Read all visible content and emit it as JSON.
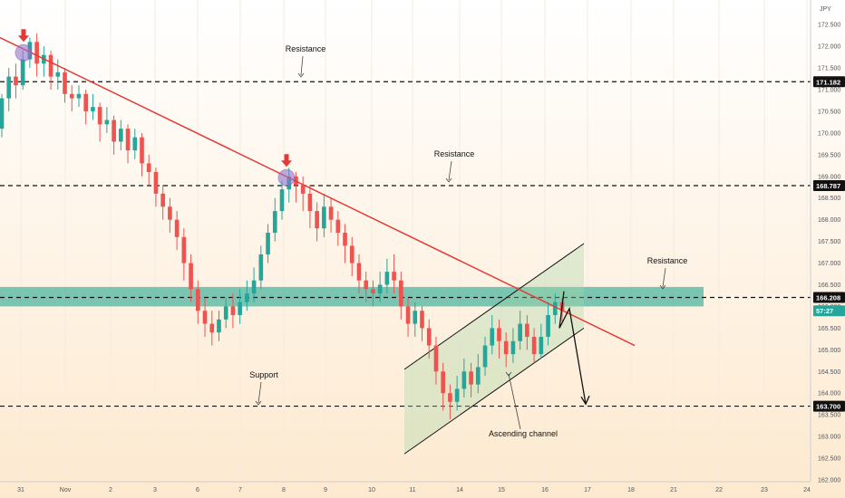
{
  "chart_data": {
    "type": "candlestick",
    "currency": "JPY",
    "y_axis": {
      "min": 162.0,
      "max": 172.9,
      "ticks": [
        "172.500",
        "172.000",
        "171.500",
        "171.000",
        "170.500",
        "170.000",
        "169.500",
        "169.000",
        "168.500",
        "168.000",
        "167.500",
        "167.000",
        "166.500",
        "166.000",
        "165.500",
        "165.000",
        "164.500",
        "164.000",
        "163.500",
        "163.000",
        "162.500",
        "162.000"
      ]
    },
    "x_axis": {
      "ticks": [
        "31",
        "Nov",
        "2",
        "3",
        "6",
        "7",
        "8",
        "9",
        "10",
        "11",
        "14",
        "15",
        "16",
        "17",
        "18",
        "21",
        "22",
        "23",
        "24"
      ]
    },
    "candle_colors": {
      "up": "#26a69a",
      "down": "#ef5350"
    },
    "horizontal_levels": [
      {
        "value": 171.182,
        "label": "171.182",
        "annotation": "Resistance"
      },
      {
        "value": 168.787,
        "label": "168.787",
        "annotation": "Resistance"
      },
      {
        "value": 166.208,
        "label": "166.208",
        "annotation": "Resistance"
      },
      {
        "value": 163.7,
        "label": "163.700",
        "annotation": "Support"
      }
    ],
    "resistance_zone": {
      "from": 166.0,
      "to": 166.45,
      "color": "#4db6a0"
    },
    "trendline": {
      "from": {
        "date": "Oct 30",
        "value": 172.2
      },
      "to": {
        "date": "Nov 17",
        "value": 165.1
      },
      "color": "#e53935"
    },
    "channel": {
      "label": "Ascending channel",
      "upper": [
        {
          "date": "Nov 10",
          "value": 164.55
        },
        {
          "date": "Nov 16",
          "value": 167.45
        }
      ],
      "lower": [
        {
          "date": "Nov 10",
          "value": 162.6
        },
        {
          "date": "Nov 16",
          "value": 165.5
        }
      ]
    },
    "current_price": {
      "label": "57:27",
      "value": 165.9
    },
    "candles": [
      [
        170.1,
        170.8,
        170.9,
        169.9
      ],
      [
        170.8,
        171.3,
        171.5,
        170.5
      ],
      [
        171.3,
        171.1,
        171.6,
        170.8
      ],
      [
        171.1,
        171.7,
        171.9,
        171.0
      ],
      [
        171.7,
        172.1,
        172.2,
        171.5
      ],
      [
        172.1,
        171.6,
        172.3,
        171.3
      ],
      [
        171.6,
        171.8,
        172.0,
        171.3
      ],
      [
        171.8,
        171.3,
        171.9,
        171.0
      ],
      [
        171.3,
        171.4,
        171.7,
        171.0
      ],
      [
        171.4,
        170.9,
        171.5,
        170.7
      ],
      [
        170.9,
        170.8,
        171.1,
        170.5
      ],
      [
        170.8,
        170.9,
        171.1,
        170.6
      ],
      [
        170.9,
        170.5,
        171.0,
        170.2
      ],
      [
        170.5,
        170.6,
        170.9,
        170.3
      ],
      [
        170.6,
        170.2,
        170.7,
        169.8
      ],
      [
        170.2,
        170.3,
        170.6,
        170.0
      ],
      [
        170.3,
        169.8,
        170.4,
        169.5
      ],
      [
        169.8,
        170.1,
        170.3,
        169.6
      ],
      [
        170.1,
        169.6,
        170.2,
        169.3
      ],
      [
        169.6,
        169.9,
        170.1,
        169.4
      ],
      [
        169.9,
        169.3,
        170.0,
        169.0
      ],
      [
        169.3,
        169.1,
        169.5,
        168.8
      ],
      [
        169.1,
        168.6,
        169.2,
        168.3
      ],
      [
        168.6,
        168.3,
        168.8,
        168.0
      ],
      [
        168.3,
        168.0,
        168.5,
        167.7
      ],
      [
        168.0,
        167.6,
        168.2,
        167.3
      ],
      [
        167.6,
        167.0,
        167.8,
        166.6
      ],
      [
        167.0,
        166.4,
        167.2,
        166.1
      ],
      [
        166.4,
        165.9,
        166.6,
        165.6
      ],
      [
        165.9,
        165.6,
        166.2,
        165.3
      ],
      [
        165.6,
        165.4,
        165.9,
        165.1
      ],
      [
        165.4,
        165.7,
        165.9,
        165.2
      ],
      [
        165.7,
        166.0,
        166.2,
        165.5
      ],
      [
        166.0,
        165.8,
        166.3,
        165.5
      ],
      [
        165.8,
        166.1,
        166.4,
        165.6
      ],
      [
        166.1,
        166.3,
        166.6,
        165.9
      ],
      [
        166.3,
        166.6,
        166.9,
        166.1
      ],
      [
        166.6,
        167.2,
        167.4,
        166.4
      ],
      [
        167.2,
        167.7,
        167.9,
        167.0
      ],
      [
        167.7,
        168.2,
        168.5,
        167.5
      ],
      [
        168.2,
        168.7,
        168.9,
        168.0
      ],
      [
        168.7,
        169.0,
        169.2,
        168.4
      ],
      [
        169.0,
        168.8,
        169.1,
        168.4
      ],
      [
        168.8,
        168.6,
        169.0,
        168.2
      ],
      [
        168.6,
        168.2,
        168.8,
        167.8
      ],
      [
        168.2,
        167.8,
        168.4,
        167.5
      ],
      [
        167.8,
        168.3,
        168.6,
        167.6
      ],
      [
        168.3,
        168.0,
        168.5,
        167.7
      ],
      [
        168.0,
        167.7,
        168.2,
        167.4
      ],
      [
        167.7,
        167.4,
        167.9,
        167.0
      ],
      [
        167.4,
        167.0,
        167.6,
        166.7
      ],
      [
        167.0,
        166.6,
        167.2,
        166.3
      ],
      [
        166.6,
        166.4,
        166.8,
        166.1
      ],
      [
        166.4,
        166.3,
        166.6,
        166.0
      ],
      [
        166.3,
        166.5,
        166.8,
        166.1
      ],
      [
        166.5,
        166.8,
        167.1,
        166.3
      ],
      [
        166.8,
        166.6,
        167.2,
        166.3
      ],
      [
        166.6,
        166.0,
        166.8,
        165.7
      ],
      [
        166.0,
        165.6,
        166.2,
        165.3
      ],
      [
        165.6,
        165.9,
        166.1,
        165.3
      ],
      [
        165.9,
        165.5,
        166.0,
        165.2
      ],
      [
        165.5,
        165.1,
        165.7,
        164.8
      ],
      [
        165.1,
        164.5,
        165.3,
        164.2
      ],
      [
        164.5,
        164.0,
        164.7,
        163.6
      ],
      [
        164.0,
        163.8,
        164.2,
        163.4
      ],
      [
        163.8,
        164.1,
        164.4,
        163.6
      ],
      [
        164.1,
        164.5,
        164.8,
        163.9
      ],
      [
        164.5,
        164.2,
        164.7,
        163.9
      ],
      [
        164.2,
        164.6,
        164.9,
        164.0
      ],
      [
        164.6,
        165.1,
        165.3,
        164.4
      ],
      [
        165.1,
        165.5,
        165.8,
        164.9
      ],
      [
        165.5,
        165.2,
        165.7,
        164.8
      ],
      [
        165.2,
        164.9,
        165.4,
        164.6
      ],
      [
        164.9,
        165.2,
        165.5,
        164.7
      ],
      [
        165.2,
        165.6,
        165.9,
        165.0
      ],
      [
        165.6,
        165.3,
        165.8,
        165.0
      ],
      [
        165.3,
        164.9,
        165.5,
        164.7
      ],
      [
        164.9,
        165.3,
        165.6,
        164.8
      ],
      [
        165.3,
        165.8,
        166.1,
        165.1
      ],
      [
        165.8,
        166.1,
        166.3,
        165.6
      ],
      [
        166.1,
        165.9,
        166.2,
        165.6
      ]
    ]
  }
}
